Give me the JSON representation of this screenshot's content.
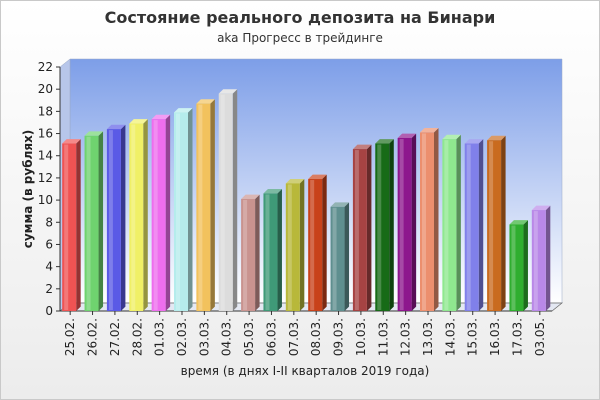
{
  "chart_data": {
    "type": "bar",
    "title": "Состояние реального депозита на Бинари",
    "subtitle": "aka Прогресс в трейдинге",
    "ylabel": "сумма (в рублях)",
    "xlabel": "время (в днях I-II кварталов 2019 года)",
    "ylim": [
      0,
      22
    ],
    "yticks": [
      0,
      2,
      4,
      6,
      8,
      10,
      12,
      14,
      16,
      18,
      20,
      22
    ],
    "grid": false,
    "legend": "none",
    "categories": [
      "25.02.",
      "26.02.",
      "27.02.",
      "28.02.",
      "01.03.",
      "02.03.",
      "03.03.",
      "04.03.",
      "05.03.",
      "06.03.",
      "07.03.",
      "08.03.",
      "09.03.",
      "10.03.",
      "11.03.",
      "12.03.",
      "13.03.",
      "14.03.",
      "15.03.",
      "16.03.",
      "17.03.",
      "03.05."
    ],
    "values": [
      15.1,
      15.8,
      16.4,
      16.9,
      17.3,
      17.9,
      18.7,
      19.6,
      10.1,
      10.6,
      11.5,
      11.9,
      9.4,
      14.6,
      15.1,
      15.6,
      16.1,
      15.5,
      15.1,
      15.4,
      7.8,
      9.1
    ],
    "colors": [
      "#ef5353",
      "#6fd36f",
      "#5a5ae6",
      "#f0f066",
      "#ee6eee",
      "#b5ecec",
      "#f2c25d",
      "#dcdcdc",
      "#c9938f",
      "#3f9a78",
      "#b8b83a",
      "#c8421a",
      "#5f8f8f",
      "#a64343",
      "#176b17",
      "#8d178d",
      "#ec8f6e",
      "#8fe88f",
      "#8080ea",
      "#c96b1f",
      "#2fae2f",
      "#b988e8"
    ]
  }
}
